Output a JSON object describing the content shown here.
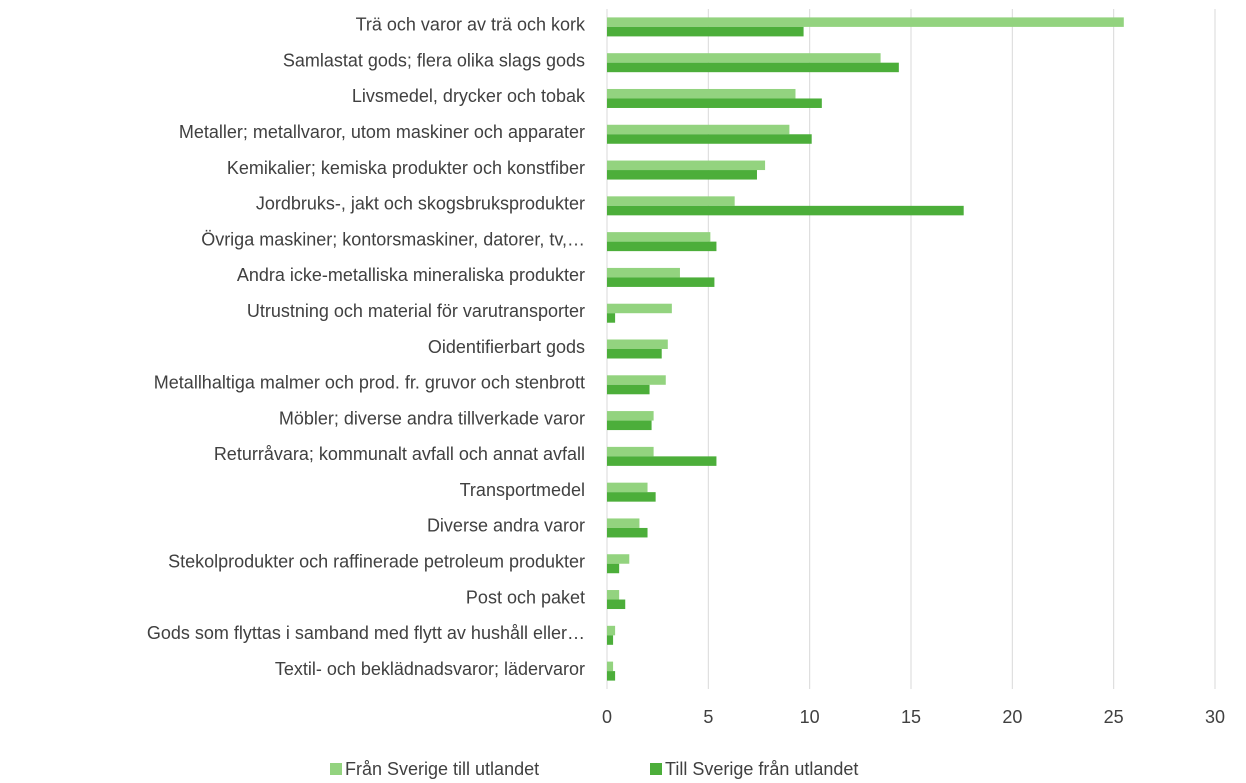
{
  "chart_data": {
    "type": "bar",
    "orientation": "horizontal",
    "categories": [
      "Trä och varor av trä och kork",
      "Samlastat gods; flera olika slags gods",
      "Livsmedel, drycker och tobak",
      "Metaller; metallvaror, utom maskiner och apparater",
      "Kemikalier; kemiska produkter och konstfiber",
      "Jordbruks-, jakt och skogsbruksprodukter",
      "Övriga maskiner; kontorsmaskiner, datorer, tv,…",
      "Andra icke-metalliska mineraliska produkter",
      "Utrustning och material för varutransporter",
      "Oidentifierbart gods",
      "Metallhaltiga malmer och prod. fr. gruvor och stenbrott",
      "Möbler; diverse andra tillverkade varor",
      "Returråvara; kommunalt avfall och annat avfall",
      "Transportmedel",
      "Diverse andra varor",
      "Stekolprodukter och raffinerade petroleum produkter",
      "Post och paket",
      "Gods som flyttas i samband med flytt av hushåll eller…",
      "Textil- och beklädnadsvaror; lädervaror"
    ],
    "series": [
      {
        "name": "Från Sverige till utlandet",
        "color": "#93d37f",
        "values": [
          25.5,
          13.5,
          9.3,
          9.0,
          7.8,
          6.3,
          5.1,
          3.6,
          3.2,
          3.0,
          2.9,
          2.3,
          2.3,
          2.0,
          1.6,
          1.1,
          0.6,
          0.4,
          0.3
        ]
      },
      {
        "name": "Till Sverige från utlandet",
        "color": "#4cae3a",
        "values": [
          9.7,
          14.4,
          10.6,
          10.1,
          7.4,
          17.6,
          5.4,
          5.3,
          0.4,
          2.7,
          2.1,
          2.2,
          5.4,
          2.4,
          2.0,
          0.6,
          0.9,
          0.3,
          0.4
        ]
      }
    ],
    "xlim": [
      0,
      30
    ],
    "xticks": [
      0,
      5,
      10,
      15,
      20,
      25,
      30
    ],
    "grid": true,
    "legend": "bottom"
  }
}
